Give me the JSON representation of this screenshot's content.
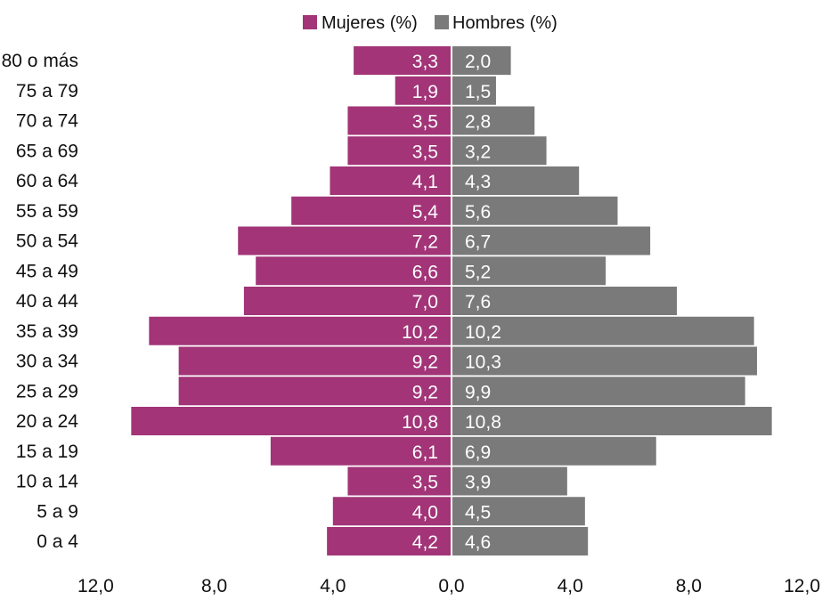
{
  "chart_data": {
    "type": "bar",
    "orientation": "horizontal",
    "layout": "population-pyramid",
    "title": "",
    "xlabel": "",
    "ylabel": "",
    "categories": [
      "80 o más",
      "75 a 79",
      "70 a 74",
      "65 a 69",
      "60 a 64",
      "55 a 59",
      "50 a 54",
      "45 a 49",
      "40 a 44",
      "35 a 39",
      "30 a 34",
      "25 a 29",
      "20 a 24",
      "15 a 19",
      "10 a 14",
      "5 a 9",
      "0 a 4"
    ],
    "series": [
      {
        "name": "Mujeres (%)",
        "side": "left",
        "color": "#a23477",
        "values": [
          3.3,
          1.9,
          3.5,
          3.5,
          4.1,
          5.4,
          7.2,
          6.6,
          7.0,
          10.2,
          9.2,
          9.2,
          10.8,
          6.1,
          3.5,
          4.0,
          4.2
        ],
        "labels": [
          "3,3",
          "1,9",
          "3,5",
          "3,5",
          "4,1",
          "5,4",
          "7,2",
          "6,6",
          "7,0",
          "10,2",
          "9,2",
          "9,2",
          "10,8",
          "6,1",
          "3,5",
          "4,0",
          "4,2"
        ]
      },
      {
        "name": "Hombres (%)",
        "side": "right",
        "color": "#7a7a7a",
        "values": [
          2.0,
          1.5,
          2.8,
          3.2,
          4.3,
          5.6,
          6.7,
          5.2,
          7.6,
          10.2,
          10.3,
          9.9,
          10.8,
          6.9,
          3.9,
          4.5,
          4.6
        ],
        "labels": [
          "2,0",
          "1,5",
          "2,8",
          "3,2",
          "4,3",
          "5,6",
          "6,7",
          "5,2",
          "7,6",
          "10,2",
          "10,3",
          "9,9",
          "10,8",
          "6,9",
          "3,9",
          "4,5",
          "4,6"
        ]
      }
    ],
    "xlim": [
      -12,
      12
    ],
    "x_ticks": [
      -12,
      -8,
      -4,
      0,
      4,
      8,
      12
    ],
    "x_tick_labels": [
      "12,0",
      "8,0",
      "4,0",
      "0,0",
      "4,0",
      "8,0",
      "12,0"
    ],
    "grid": false,
    "legend": "top-center"
  }
}
